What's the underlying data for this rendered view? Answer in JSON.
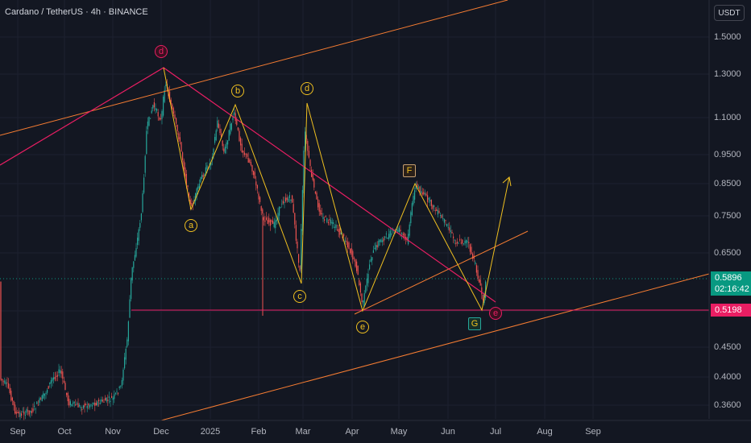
{
  "header": {
    "title": "Cardano / TetherUS · 4h · BINANCE"
  },
  "axis": {
    "currency": "USDT",
    "y_ticks": [
      "1.5000",
      "1.3000",
      "1.1000",
      "0.9500",
      "0.8500",
      "0.7500",
      "0.6500",
      "0.5500",
      "0.4500",
      "0.4000",
      "0.3600"
    ],
    "x_ticks": [
      "Sep",
      "Oct",
      "Nov",
      "Dec",
      "2025",
      "Feb",
      "Mar",
      "Apr",
      "May",
      "Jun",
      "Jul",
      "Aug",
      "Sep"
    ]
  },
  "price": {
    "current": "0.5896",
    "countdown": "02:16:42",
    "support": "0.5198"
  },
  "wave_labels": {
    "d_major": "d",
    "a": "a",
    "b": "b",
    "c": "c",
    "d": "d",
    "e": "e",
    "F": "F",
    "G": "G",
    "e_target": "e"
  },
  "colors": {
    "background": "#131722",
    "up_candle": "#26a69a",
    "down_candle": "#ef5350",
    "magenta": "#e91e63",
    "orange": "#f57c32",
    "yellow": "#f0c020",
    "green_badge": "#089981"
  }
}
